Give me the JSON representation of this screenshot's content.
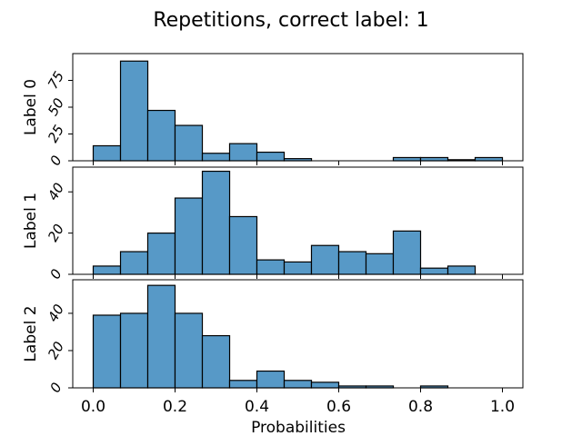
{
  "figure": {
    "title": "Repetitions, correct label: 1",
    "xlabel": "Probabilities"
  },
  "colors": {
    "bar_fill": "#5799c7",
    "bar_edge": "#000000",
    "axes": "#000000",
    "background": "#ffffff"
  },
  "chart_data": [
    {
      "type": "bar",
      "ylabel": "Label 0",
      "bin_width": 0.0667,
      "bin_starts": [
        0.0,
        0.0667,
        0.1333,
        0.2,
        0.2667,
        0.3333,
        0.4,
        0.4667,
        0.5333,
        0.6,
        0.6667,
        0.7333,
        0.8,
        0.8667,
        0.9333
      ],
      "values": [
        14,
        93,
        47,
        33,
        7,
        16,
        8,
        2,
        0,
        0,
        0,
        3,
        3,
        1,
        3
      ],
      "ylim": [
        0,
        100
      ],
      "yticks": [
        0,
        25,
        50,
        75
      ],
      "xticks_visible": false
    },
    {
      "type": "bar",
      "ylabel": "Label 1",
      "bin_width": 0.0667,
      "bin_starts": [
        0.0,
        0.0667,
        0.1333,
        0.2,
        0.2667,
        0.3333,
        0.4,
        0.4667,
        0.5333,
        0.6,
        0.6667,
        0.7333,
        0.8,
        0.8667
      ],
      "values": [
        4,
        11,
        20,
        37,
        50,
        28,
        7,
        6,
        14,
        11,
        10,
        21,
        3,
        4
      ],
      "ylim": [
        0,
        52
      ],
      "yticks": [
        0,
        20,
        40
      ],
      "xticks_visible": false
    },
    {
      "type": "bar",
      "ylabel": "Label 2",
      "bin_width": 0.0667,
      "bin_starts": [
        0.0,
        0.0667,
        0.1333,
        0.2,
        0.2667,
        0.3333,
        0.4,
        0.4667,
        0.5333,
        0.6,
        0.6667,
        0.7333,
        0.8
      ],
      "values": [
        39,
        40,
        55,
        40,
        28,
        4,
        9,
        4,
        3,
        1,
        1,
        0,
        1
      ],
      "ylim": [
        0,
        58
      ],
      "yticks": [
        0,
        20,
        40
      ],
      "xticks_visible": true
    }
  ],
  "x_axis": {
    "xlim": [
      -0.05,
      1.05
    ],
    "ticks": [
      0.0,
      0.2,
      0.4,
      0.6,
      0.8,
      1.0
    ],
    "tick_labels": [
      "0.0",
      "0.2",
      "0.4",
      "0.6",
      "0.8",
      "1.0"
    ]
  }
}
